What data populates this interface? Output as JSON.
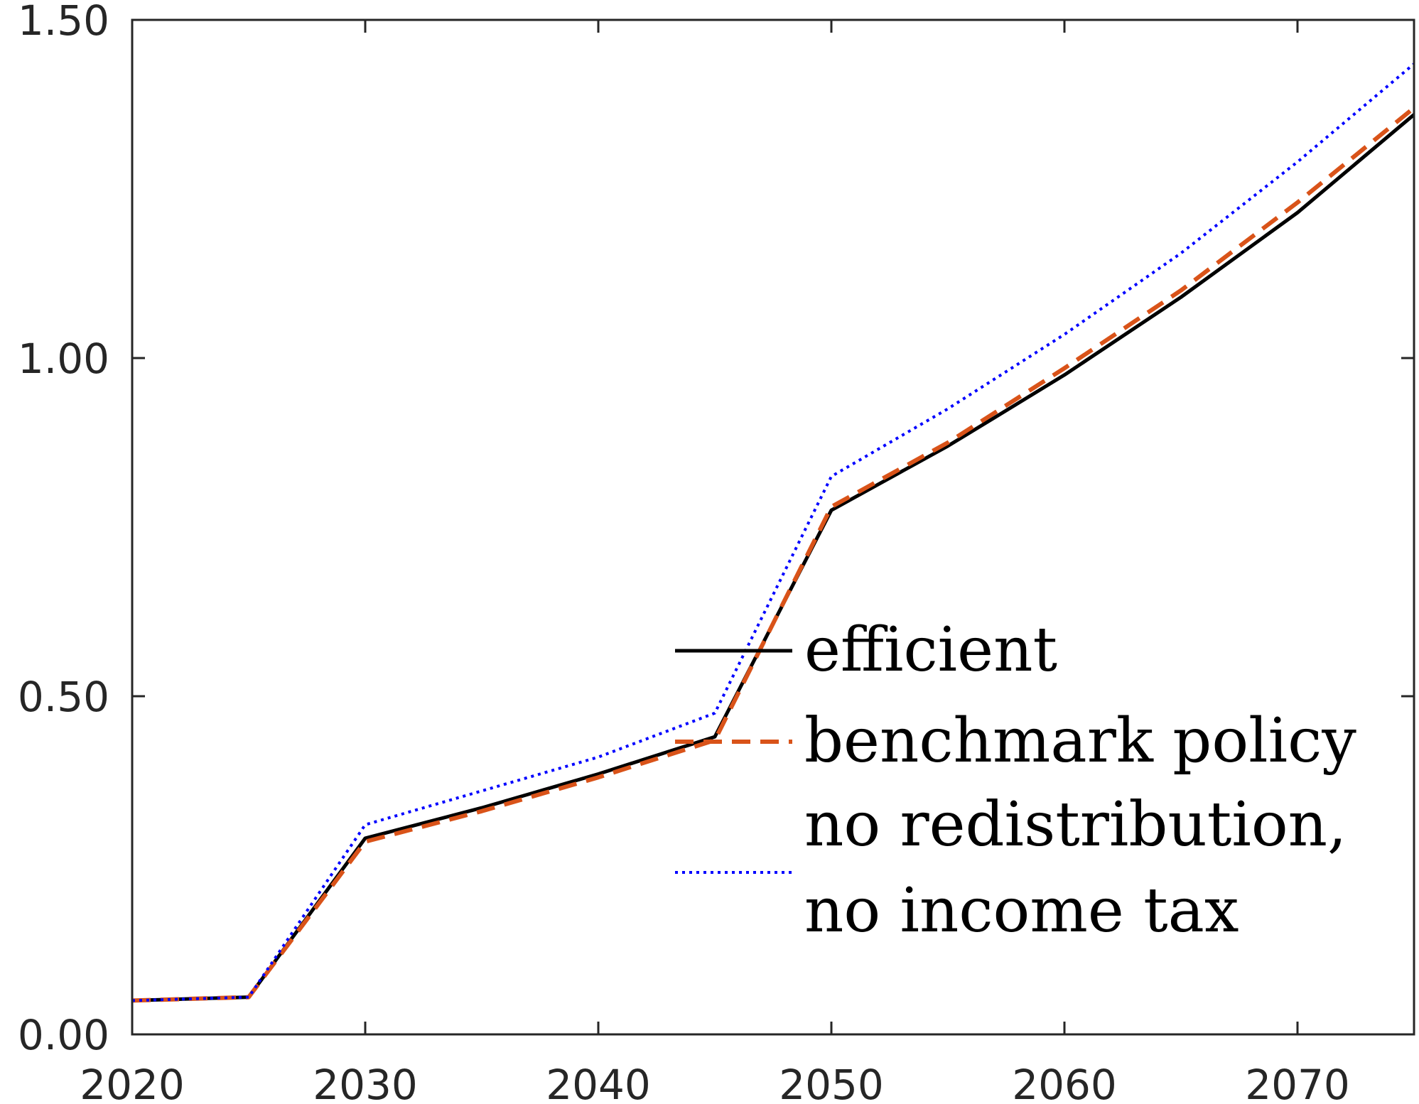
{
  "chart_data": {
    "type": "line",
    "title": "",
    "xlabel": "",
    "ylabel": "",
    "xlim": [
      2020,
      2075
    ],
    "ylim": [
      0,
      1.5
    ],
    "xticks": [
      2020,
      2030,
      2040,
      2050,
      2060,
      2070
    ],
    "yticks": [
      0,
      0.5,
      1.0,
      1.5
    ],
    "xtick_labels": [
      "2020",
      "2030",
      "2040",
      "2050",
      "2060",
      "2070"
    ],
    "ytick_labels": [
      "0.00",
      "0.50",
      "1.00",
      "1.50"
    ],
    "grid": false,
    "legend_position": "right",
    "x": [
      2020,
      2025,
      2030,
      2035,
      2040,
      2045,
      2050,
      2055,
      2060,
      2065,
      2070,
      2075
    ],
    "series": [
      {
        "name": "efficient",
        "color": "#000000",
        "style": "solid",
        "values": [
          0.05,
          0.055,
          0.29,
          0.335,
          0.385,
          0.44,
          0.775,
          0.87,
          0.975,
          1.09,
          1.215,
          1.36
        ]
      },
      {
        "name": "benchmark policy",
        "color": "#d95319",
        "style": "dashed",
        "values": [
          0.05,
          0.055,
          0.285,
          0.33,
          0.38,
          0.435,
          0.78,
          0.875,
          0.985,
          1.1,
          1.23,
          1.37
        ]
      },
      {
        "name_lines": [
          "no redistribution,",
          "no income tax"
        ],
        "color": "#0000ff",
        "style": "dotted",
        "values": [
          0.05,
          0.055,
          0.31,
          0.36,
          0.41,
          0.475,
          0.825,
          0.925,
          1.035,
          1.155,
          1.29,
          1.435
        ]
      }
    ]
  }
}
